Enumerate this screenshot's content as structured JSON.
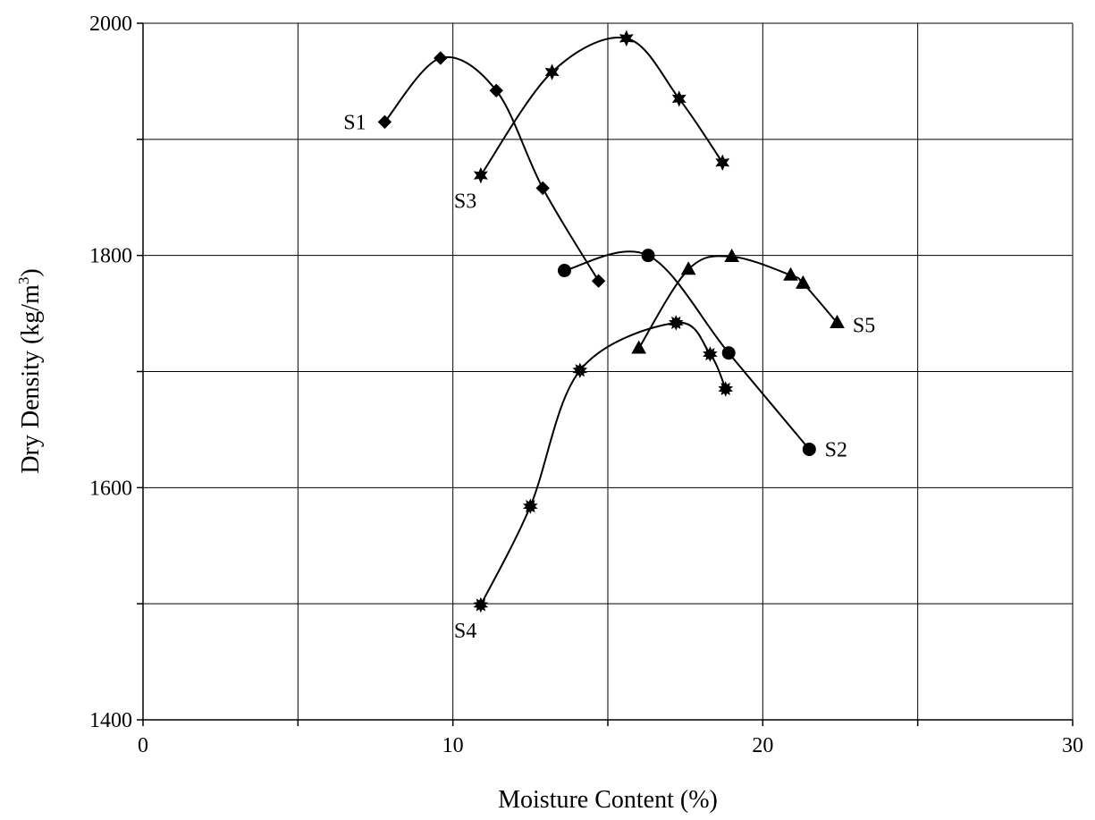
{
  "chart_data": {
    "type": "scatter",
    "title": "",
    "xlabel": "Moisture Content (%)",
    "ylabel_main": "Dry Density (kg/m",
    "ylabel_sup": "3",
    "ylabel_close": ")",
    "xlim": [
      0,
      30
    ],
    "ylim": [
      1400,
      2000
    ],
    "x_major_ticks": [
      0,
      10,
      20,
      30
    ],
    "x_minor_ticks": [
      5,
      15,
      25
    ],
    "y_major_ticks": [
      1400,
      1600,
      1800,
      2000
    ],
    "y_minor_ticks": [
      1500,
      1700,
      1900
    ],
    "grid": true,
    "legend": "none",
    "series": [
      {
        "name": "S1",
        "marker": "diamond",
        "x": [
          7.8,
          9.6,
          11.4,
          12.9,
          14.7
        ],
        "y": [
          1915,
          1970,
          1942,
          1858,
          1778
        ],
        "label_pos": [
          7.2,
          1915
        ],
        "label_anchor": "end"
      },
      {
        "name": "S2",
        "marker": "circle",
        "x": [
          13.6,
          16.3,
          18.9,
          21.5
        ],
        "y": [
          1787,
          1800,
          1716,
          1633
        ],
        "label_pos": [
          22.0,
          1633
        ],
        "label_anchor": "start"
      },
      {
        "name": "S3",
        "marker": "star6",
        "x": [
          10.9,
          13.2,
          15.6,
          17.3,
          18.7
        ],
        "y": [
          1869,
          1958,
          1987,
          1935,
          1880
        ],
        "label_pos": [
          10.4,
          1847
        ],
        "label_anchor": "middle"
      },
      {
        "name": "S4",
        "marker": "starburst",
        "x": [
          10.9,
          12.5,
          14.1,
          17.2,
          18.3,
          18.8
        ],
        "y": [
          1499,
          1584,
          1701,
          1742,
          1715,
          1685
        ],
        "label_pos": [
          10.4,
          1477
        ],
        "label_anchor": "middle"
      },
      {
        "name": "S5",
        "marker": "triangle",
        "x": [
          16.0,
          17.6,
          19.0,
          20.9,
          21.3,
          22.4
        ],
        "y": [
          1720,
          1788,
          1799,
          1783,
          1776,
          1742
        ],
        "label_pos": [
          22.9,
          1740
        ],
        "label_anchor": "start"
      }
    ]
  }
}
